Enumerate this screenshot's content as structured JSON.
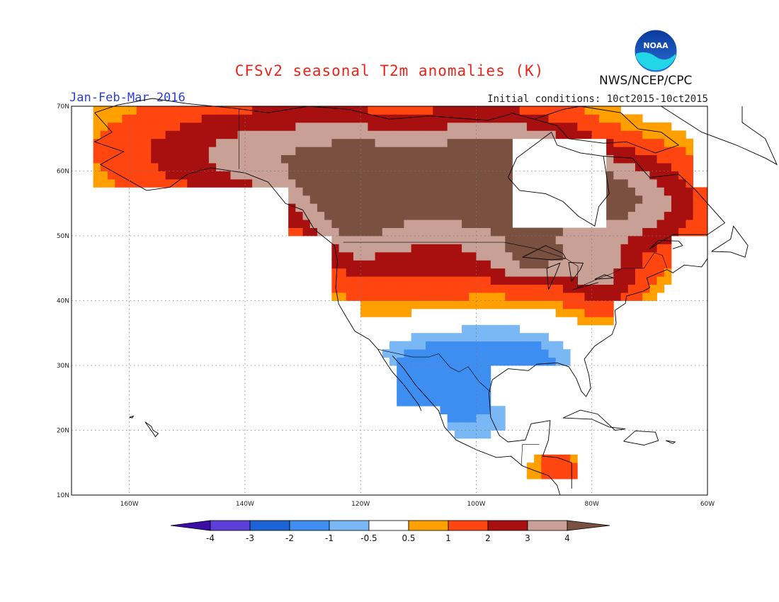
{
  "chart_data": {
    "type": "heatmap",
    "title": "CFSv2 seasonal T2m anomalies (K)",
    "subtitle_left": "Jan-Feb-Mar 2016",
    "subtitle_right": "Initial conditions: 10ct2015-10ct2015",
    "agency": "NWS/NCEP/CPC",
    "logo_text": "NOAA",
    "x_axis": {
      "range": [
        -170,
        -60
      ],
      "unit": "longitude",
      "ticks": [
        "160W",
        "140W",
        "120W",
        "100W",
        "80W",
        "60W"
      ]
    },
    "y_axis": {
      "range": [
        10,
        70
      ],
      "unit": "latitude",
      "ticks": [
        "10N",
        "20N",
        "30N",
        "40N",
        "50N",
        "60N",
        "70N"
      ]
    },
    "grid": true,
    "colorbar": {
      "position": "bottom",
      "labels": [
        "-4",
        "-3",
        "-2",
        "-1",
        "-0.5",
        "0.5",
        "1",
        "2",
        "3",
        "4"
      ],
      "colors": [
        "#3b0ea8",
        "#5b3fd6",
        "#1c63d6",
        "#3d8ef0",
        "#7ab8f5",
        "#ffffff",
        "#ffa000",
        "#ff4510",
        "#a80f0f",
        "#c9a096",
        "#7a5040"
      ]
    }
  }
}
